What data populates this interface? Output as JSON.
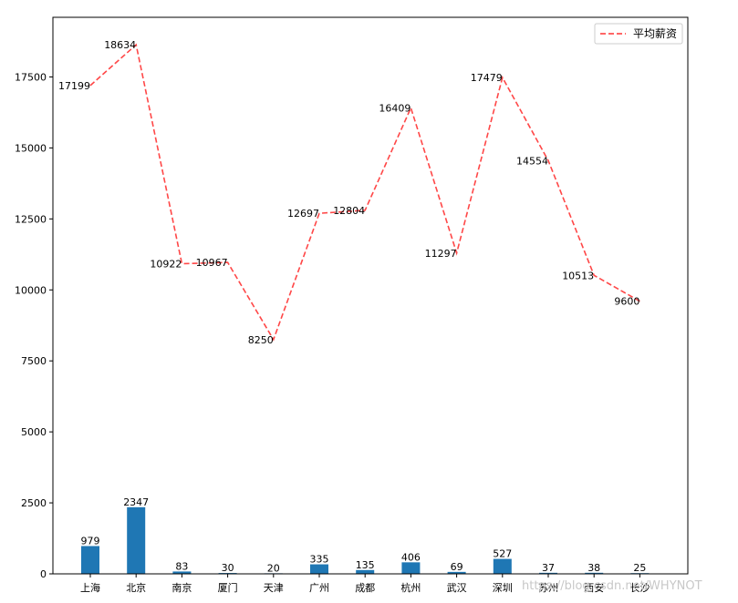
{
  "chart_data": {
    "type": "bar+line",
    "categories": [
      "上海",
      "北京",
      "南京",
      "厦门",
      "天津",
      "广州",
      "成都",
      "杭州",
      "武汉",
      "深圳",
      "苏州",
      "西安",
      "长沙"
    ],
    "series": [
      {
        "type": "bar",
        "values": [
          979,
          2347,
          83,
          30,
          20,
          335,
          135,
          406,
          69,
          527,
          37,
          38,
          25
        ],
        "color": "#1f77b4",
        "data_labels": [
          "979",
          "2347",
          "83",
          "30",
          "20",
          "335",
          "135",
          "406",
          "69",
          "527",
          "37",
          "38",
          "25"
        ]
      },
      {
        "type": "line",
        "name": "平均薪资",
        "values": [
          17199,
          18634,
          10922,
          10967,
          8250,
          12697,
          12804,
          16409,
          11297,
          17479,
          14554,
          10513,
          9600
        ],
        "color": "#ff3333",
        "line_style": "dashed",
        "data_labels": [
          "17199",
          "18634",
          "10922",
          "10967",
          "8250",
          "12697",
          "12804",
          "16409",
          "11297",
          "17479",
          "14554",
          "10513",
          "9600"
        ]
      }
    ],
    "ylim": [
      0,
      19600
    ],
    "yticks": [
      0,
      2500,
      5000,
      7500,
      10000,
      12500,
      15000,
      17500
    ],
    "ytick_labels": [
      "0",
      "2500",
      "5000",
      "7500",
      "10000",
      "12500",
      "15000",
      "17500"
    ],
    "legend": {
      "position": "top-right",
      "entries": [
        "平均薪资"
      ]
    },
    "grid": false
  },
  "watermark": "https://blog.csdn.net/WHYNOT"
}
